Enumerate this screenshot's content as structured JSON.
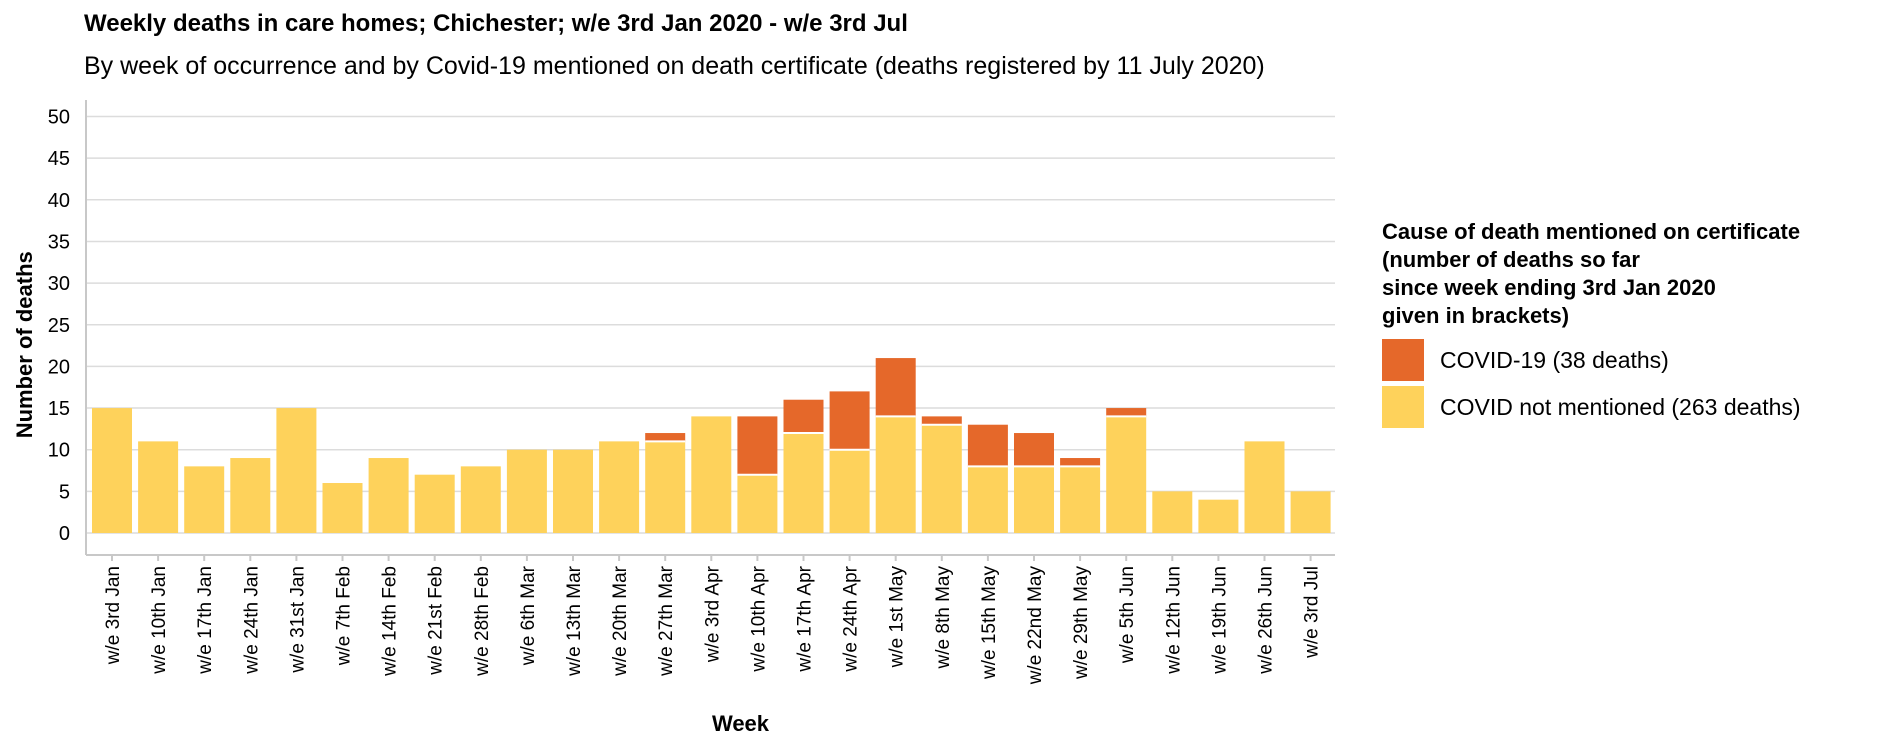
{
  "chart_data": {
    "type": "bar",
    "stacked": true,
    "title": "Weekly deaths in care homes; Chichester; w/e 3rd Jan 2020 - w/e 3rd Jul",
    "subtitle": "By week of occurrence and by Covid-19 mentioned on death certificate (deaths registered by 11 July 2020)",
    "xlabel": "Week",
    "ylabel": "Number of deaths",
    "ylim": [
      0,
      50
    ],
    "yticks": [
      0,
      5,
      10,
      15,
      20,
      25,
      30,
      35,
      40,
      45,
      50
    ],
    "grid": true,
    "legend_position": "right",
    "categories": [
      "w/e 3rd Jan",
      "w/e 10th Jan",
      "w/e 17th Jan",
      "w/e 24th Jan",
      "w/e 31st Jan",
      "w/e 7th Feb",
      "w/e 14th Feb",
      "w/e 21st Feb",
      "w/e 28th Feb",
      "w/e 6th Mar",
      "w/e 13th Mar",
      "w/e 20th Mar",
      "w/e 27th Mar",
      "w/e 3rd Apr",
      "w/e 10th Apr",
      "w/e 17th Apr",
      "w/e 24th Apr",
      "w/e 1st May",
      "w/e 8th May",
      "w/e 15th May",
      "w/e 22nd May",
      "w/e 29th May",
      "w/e 5th Jun",
      "w/e 12th Jun",
      "w/e 19th Jun",
      "w/e 26th Jun",
      "w/e 3rd Jul"
    ],
    "series": [
      {
        "name": "COVID not mentioned (263 deaths)",
        "color": "#fed25b",
        "values": [
          15,
          11,
          8,
          9,
          15,
          6,
          9,
          7,
          8,
          10,
          10,
          11,
          11,
          14,
          7,
          12,
          10,
          14,
          13,
          8,
          8,
          8,
          14,
          5,
          4,
          11,
          5
        ]
      },
      {
        "name": "COVID-19 (38 deaths)",
        "color": "#e5682a",
        "values": [
          0,
          0,
          0,
          0,
          0,
          0,
          0,
          0,
          0,
          0,
          0,
          0,
          1,
          0,
          7,
          4,
          7,
          7,
          1,
          5,
          4,
          1,
          1,
          0,
          0,
          0,
          0
        ]
      }
    ],
    "legend": {
      "title_lines": [
        "Cause of death mentioned on certificate",
        "(number of deaths so far",
        "since week ending 3rd Jan 2020",
        "given in brackets)"
      ],
      "items": [
        {
          "label": "COVID-19 (38 deaths)",
          "color": "#e5682a"
        },
        {
          "label": "COVID not mentioned (263 deaths)",
          "color": "#fed25b"
        }
      ]
    }
  }
}
